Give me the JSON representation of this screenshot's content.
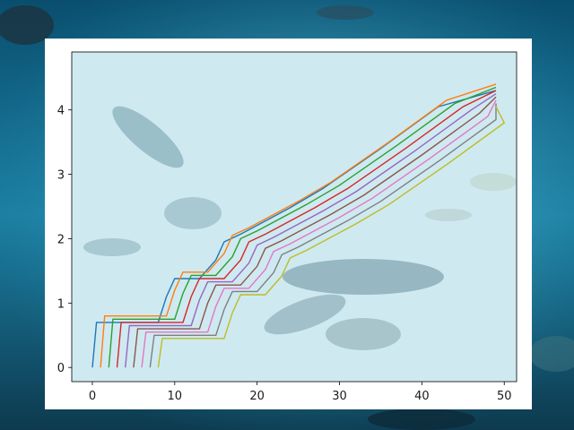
{
  "background": {
    "description_colors": [
      "#0b4f6c",
      "#1b86a8",
      "#3fb3cf",
      "#0e3b52"
    ],
    "icon": "underwater-fish-scene"
  },
  "chart_data": {
    "type": "line",
    "title": "",
    "xlabel": "",
    "ylabel": "",
    "xlim": [
      -2.5,
      51.5
    ],
    "ylim": [
      -0.22,
      4.9
    ],
    "x_ticks": [
      0,
      10,
      20,
      30,
      40,
      50
    ],
    "y_ticks": [
      0,
      1,
      2,
      3,
      4
    ],
    "grid": false,
    "legend": "none",
    "shape": {
      "step_x": [
        0,
        0.5,
        8,
        9,
        10,
        13,
        15,
        16,
        18,
        24,
        28,
        35,
        42
      ],
      "step_y": [
        0,
        0.7,
        0.7,
        1.1,
        1.38,
        1.38,
        1.67,
        1.95,
        2.07,
        2.48,
        2.78,
        3.4,
        4.05
      ],
      "top_x": 49,
      "top_y": 4.3
    },
    "series": [
      {
        "x_offset": 0,
        "y_offset": 0.0,
        "color": "#1f77b4"
      },
      {
        "x_offset": 1,
        "y_offset": 0.1,
        "color": "#ff7f0e"
      },
      {
        "x_offset": 2,
        "y_offset": 0.05,
        "color": "#2ca02c"
      },
      {
        "x_offset": 3,
        "y_offset": 0.0,
        "color": "#d62728"
      },
      {
        "x_offset": 4,
        "y_offset": -0.05,
        "color": "#9467bd"
      },
      {
        "x_offset": 5,
        "y_offset": -0.1,
        "color": "#8c564b"
      },
      {
        "x_offset": 6,
        "y_offset": -0.15,
        "color": "#e377c2"
      },
      {
        "x_offset": 7,
        "y_offset": -0.2,
        "color": "#7f7f7f"
      },
      {
        "x_offset": 8,
        "y_offset": -0.25,
        "color": "#bcbd22"
      }
    ]
  }
}
